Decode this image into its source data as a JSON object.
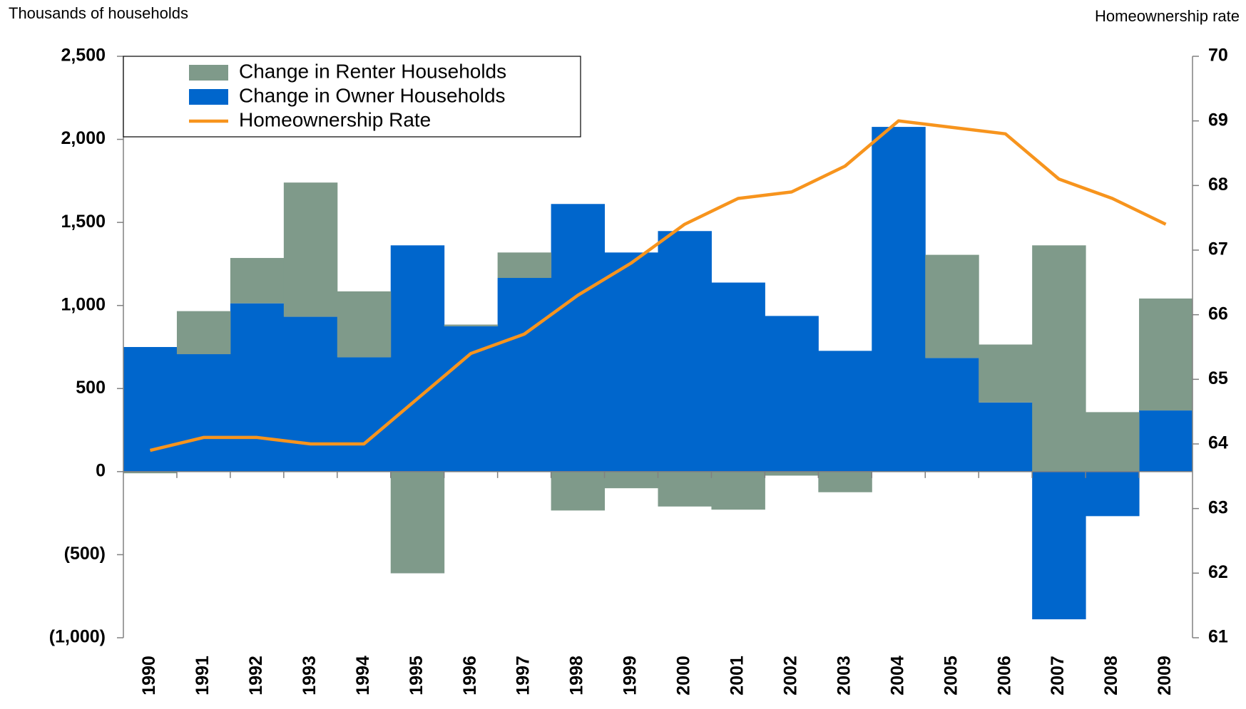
{
  "chart_data": {
    "type": "stacked_bar_line",
    "ylabel": "Thousands of households",
    "y2label": "Homeownership rate",
    "categories": [
      "1990",
      "1991",
      "1992",
      "1993",
      "1994",
      "1995",
      "1996",
      "1997",
      "1998",
      "1999",
      "2000",
      "2001",
      "2002",
      "2003",
      "2004",
      "2005",
      "2006",
      "2007",
      "2008",
      "2009"
    ],
    "series": [
      {
        "name": "Change in Owner Households",
        "color": "#0066cc",
        "type": "bar",
        "values": [
          750,
          707,
          1013,
          932,
          688,
          1362,
          875,
          1166,
          1611,
          1319,
          1448,
          1138,
          937,
          727,
          2075,
          684,
          416,
          -889,
          -268,
          368
        ]
      },
      {
        "name": "Change in Renter Households",
        "color": "#7f9a8a",
        "type": "bar",
        "values": [
          -10,
          259,
          273,
          808,
          397,
          -612,
          10,
          153,
          -234,
          -100,
          -210,
          -229,
          -24,
          -124,
          0,
          621,
          349,
          1362,
          358,
          674
        ]
      },
      {
        "name": "Homeownership Rate",
        "color": "#f7941d",
        "type": "line",
        "axis": "y2",
        "values": [
          63.9,
          64.1,
          64.1,
          64.0,
          64.0,
          64.7,
          65.4,
          65.7,
          66.3,
          66.8,
          67.4,
          67.8,
          67.9,
          68.3,
          69.0,
          68.9,
          68.8,
          68.1,
          67.8,
          67.4
        ]
      }
    ],
    "legend_order": [
      1,
      0,
      2
    ],
    "ylim": [
      -1000,
      2500
    ],
    "yticks": [
      {
        "value": -1000,
        "label": "(1,000)"
      },
      {
        "value": -500,
        "label": "(500)"
      },
      0,
      500,
      {
        "value": 1000,
        "label": "1,000"
      },
      {
        "value": 1500,
        "label": "1,500"
      },
      {
        "value": 2000,
        "label": "2,000"
      },
      {
        "value": 2500,
        "label": "2,500"
      }
    ],
    "negative_tick_color": "#ee1111",
    "y2lim": [
      61,
      70
    ],
    "y2ticks": [
      61,
      62,
      63,
      64,
      65,
      66,
      67,
      68,
      69,
      70
    ],
    "legend": "upper left"
  }
}
